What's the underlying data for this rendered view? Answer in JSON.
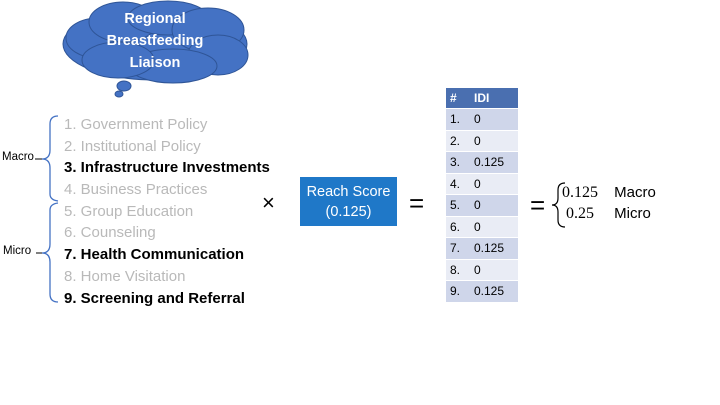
{
  "cloud": {
    "title": "Regional Breastfeeding Liaison"
  },
  "side_labels": {
    "macro": "Macro",
    "micro": "Micro"
  },
  "strategies": [
    {
      "label": "1. Government Policy",
      "active": false
    },
    {
      "label": "2. Institutional Policy",
      "active": false
    },
    {
      "label": "3. Infrastructure Investments",
      "active": true
    },
    {
      "label": "4. Business Practices",
      "active": false
    },
    {
      "label": "5. Group Education",
      "active": false
    },
    {
      "label": "6. Counseling",
      "active": false
    },
    {
      "label": "7. Health Communication",
      "active": true
    },
    {
      "label": "8. Home Visitation",
      "active": false
    },
    {
      "label": "9. Screening and Referral",
      "active": true
    }
  ],
  "operators": {
    "times": "×",
    "equals": "=",
    "equals2": "="
  },
  "reach_score": {
    "label": "Reach Score",
    "value": "(0.125)"
  },
  "idi_table": {
    "headers": [
      "#",
      "IDI"
    ],
    "rows": [
      [
        "1.",
        "0"
      ],
      [
        "2.",
        "0"
      ],
      [
        "3.",
        "0.125"
      ],
      [
        "4.",
        "0"
      ],
      [
        "5.",
        "0"
      ],
      [
        "6.",
        "0"
      ],
      [
        "7.",
        "0.125"
      ],
      [
        "8.",
        "0"
      ],
      [
        "9.",
        "0.125"
      ]
    ]
  },
  "result": {
    "macro_value": "0.125",
    "macro_label": "Macro",
    "micro_value": "0.25",
    "micro_label": "Micro"
  },
  "colors": {
    "cloud": "#4472c4",
    "reach_box": "#1f78c8",
    "table_header": "#4a6fb0",
    "dim_text": "#b9b9b9"
  }
}
